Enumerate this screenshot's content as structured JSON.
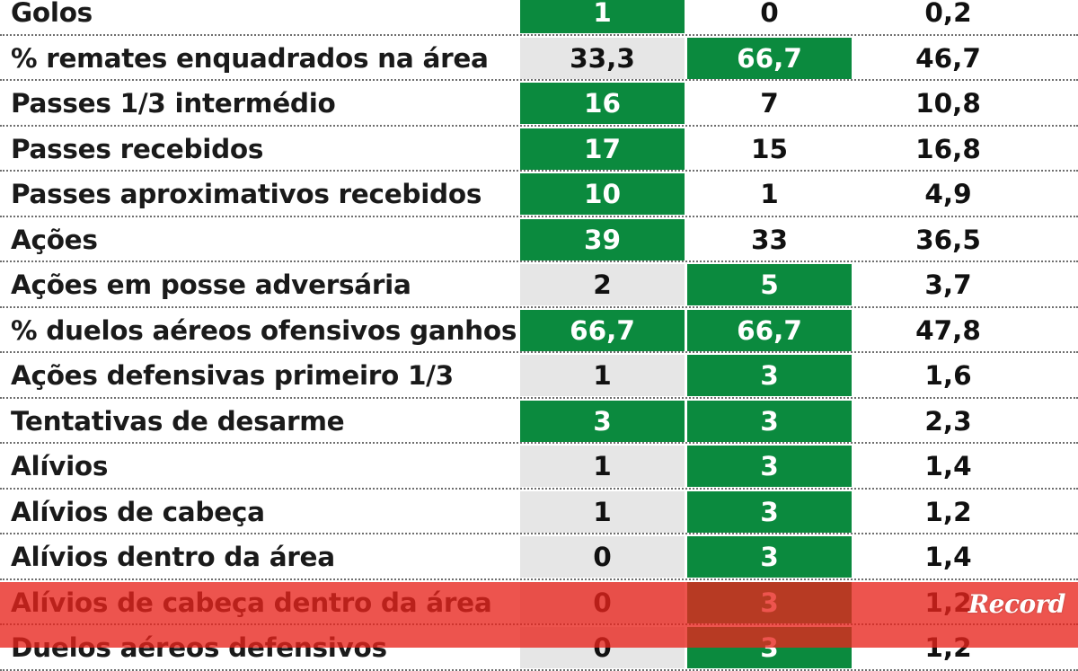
{
  "rows": [
    {
      "label": "Golos",
      "v1": "1",
      "v2": "0",
      "v3": "0,2",
      "hl1": true,
      "hl2": false
    },
    {
      "label": "% remates enquadrados na área",
      "v1": "33,3",
      "v2": "66,7",
      "v3": "46,7",
      "hl1": false,
      "hl2": true
    },
    {
      "label": "Passes 1/3 intermédio",
      "v1": "16",
      "v2": "7",
      "v3": "10,8",
      "hl1": true,
      "hl2": false
    },
    {
      "label": "Passes recebidos",
      "v1": "17",
      "v2": "15",
      "v3": "16,8",
      "hl1": true,
      "hl2": false
    },
    {
      "label": "Passes aproximativos recebidos",
      "v1": "10",
      "v2": "1",
      "v3": "4,9",
      "hl1": true,
      "hl2": false
    },
    {
      "label": "Ações",
      "v1": "39",
      "v2": "33",
      "v3": "36,5",
      "hl1": true,
      "hl2": false
    },
    {
      "label": "Ações em posse adversária",
      "v1": "2",
      "v2": "5",
      "v3": "3,7",
      "hl1": false,
      "hl2": true
    },
    {
      "label": "% duelos aéreos ofensivos ganhos",
      "v1": "66,7",
      "v2": "66,7",
      "v3": "47,8",
      "hl1": true,
      "hl2": true
    },
    {
      "label": "Ações defensivas primeiro 1/3",
      "v1": "1",
      "v2": "3",
      "v3": "1,6",
      "hl1": false,
      "hl2": true
    },
    {
      "label": "Tentativas de desarme",
      "v1": "3",
      "v2": "3",
      "v3": "2,3",
      "hl1": true,
      "hl2": true
    },
    {
      "label": "Alívios",
      "v1": "1",
      "v2": "3",
      "v3": "1,4",
      "hl1": false,
      "hl2": true
    },
    {
      "label": "Alívios de cabeça",
      "v1": "1",
      "v2": "3",
      "v3": "1,2",
      "hl1": false,
      "hl2": true
    },
    {
      "label": "Alívios dentro da área",
      "v1": "0",
      "v2": "3",
      "v3": "1,4",
      "hl1": false,
      "hl2": true
    },
    {
      "label": "Alívios de cabeça dentro da área",
      "v1": "0",
      "v2": "3",
      "v3": "1,2",
      "hl1": false,
      "hl2": true
    },
    {
      "label": "Duelos aéreos defensivos",
      "v1": "0",
      "v2": "3",
      "v3": "1,2",
      "hl1": false,
      "hl2": true
    }
  ],
  "colors": {
    "highlight": "#0b8a3e",
    "row_shade": "#e6e6e6",
    "overlay": "#e8241c"
  },
  "brand": {
    "logo_text": "Record",
    "logo_icon": "record-logo-icon"
  }
}
